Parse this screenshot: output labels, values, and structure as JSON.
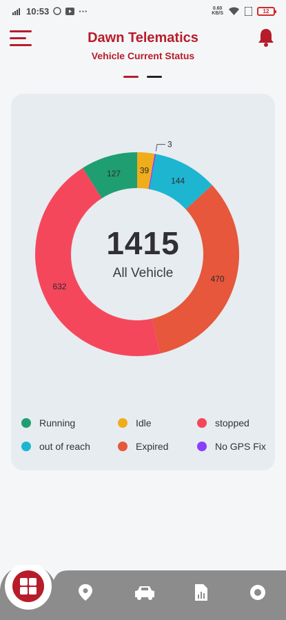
{
  "status_bar": {
    "time": "10:53",
    "network_speed_value": "0.60",
    "network_speed_unit": "KB/S",
    "battery": "12"
  },
  "header": {
    "title": "Dawn Telematics",
    "subtitle": "Vehicle Current Status"
  },
  "colors": {
    "brand": "#b71c2a",
    "running": "#1f9e72",
    "idle": "#f0ad1b",
    "stopped": "#f5475c",
    "out_of_reach": "#1eb5d1",
    "expired": "#e6573b",
    "no_gps_fix": "#8a3ffc"
  },
  "chart_data": {
    "type": "pie",
    "center_total": "1415",
    "center_label": "All Vehicle",
    "categories": [
      "Running",
      "Idle",
      "No GPS Fix",
      "out of reach",
      "Expired",
      "stopped"
    ],
    "values": [
      127,
      39,
      3,
      144,
      470,
      632
    ],
    "labels": [
      "127",
      "39",
      "3",
      "144",
      "470",
      "632"
    ]
  },
  "legend": [
    {
      "label": "Running",
      "color": "#1f9e72"
    },
    {
      "label": "Idle",
      "color": "#f0ad1b"
    },
    {
      "label": "stopped",
      "color": "#f5475c"
    },
    {
      "label": "out of reach",
      "color": "#1eb5d1"
    },
    {
      "label": "Expired",
      "color": "#e6573b"
    },
    {
      "label": "No GPS Fix",
      "color": "#8a3ffc"
    }
  ],
  "bottom_nav": {
    "items": [
      "dashboard-icon",
      "map-pin-icon",
      "car-icon",
      "report-icon",
      "record-icon"
    ]
  }
}
